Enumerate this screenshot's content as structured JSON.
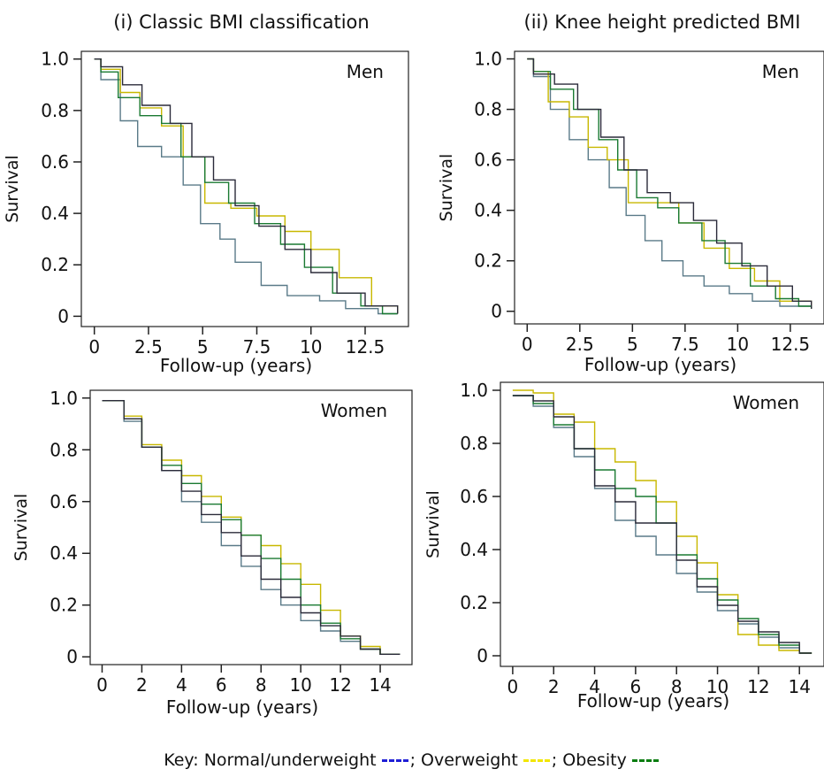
{
  "column_titles": [
    "(i) Classic BMI classification",
    "(ii) Knee height predicted BMI"
  ],
  "legend": {
    "prefix": "Key:",
    "items": [
      {
        "label": "Normal/underweight",
        "color": "#1f1fd6",
        "suffix": ";"
      },
      {
        "label": "Overweight",
        "color": "#f2e600",
        "suffix": ";"
      },
      {
        "label": "Obesity",
        "color": "#0a7d10",
        "suffix": ""
      }
    ]
  },
  "chart_data": [
    {
      "type": "line",
      "step": true,
      "column_title": "(i) Classic BMI classification",
      "panel_label": "Men",
      "xlabel": "Follow-up (years)",
      "ylabel": "Survival",
      "xlim": [
        -0.6,
        14.5
      ],
      "ylim": [
        -0.04,
        1.03
      ],
      "xticks": [
        0,
        2.5,
        5,
        7.5,
        10,
        12.5
      ],
      "xtick_labels": [
        "0",
        "2.5",
        "5",
        "7.5",
        "10",
        "12.5"
      ],
      "yticks": [
        0,
        0.2,
        0.4,
        0.6,
        0.8,
        1.0
      ],
      "ytick_labels": [
        "0",
        "0.2",
        "0.4",
        "0.6",
        "0.8",
        "1.0"
      ],
      "series": [
        {
          "color": "#5a7a88",
          "x": [
            0,
            0.3,
            1.2,
            2,
            3.1,
            4.1,
            4.9,
            5.8,
            6.5,
            7.7,
            8.9,
            10.4,
            11.6,
            13.1,
            14
          ],
          "y": [
            1.0,
            0.92,
            0.76,
            0.66,
            0.62,
            0.51,
            0.36,
            0.3,
            0.21,
            0.12,
            0.08,
            0.06,
            0.03,
            0.01,
            0.01
          ]
        },
        {
          "color": "#c8b800",
          "x": [
            0,
            0.3,
            1.2,
            2.1,
            3.1,
            4.1,
            5.1,
            6.3,
            7.5,
            8.8,
            10,
            11.3,
            12.8,
            14
          ],
          "y": [
            1.0,
            0.96,
            0.87,
            0.81,
            0.74,
            0.62,
            0.44,
            0.42,
            0.39,
            0.33,
            0.26,
            0.15,
            0.04,
            0.01
          ]
        },
        {
          "color": "#1a7a32",
          "x": [
            0,
            0.3,
            1.1,
            2.1,
            3.1,
            4,
            5.1,
            6.2,
            7.4,
            8.6,
            9.7,
            11,
            12.3,
            13.3,
            14
          ],
          "y": [
            1.0,
            0.95,
            0.85,
            0.78,
            0.75,
            0.62,
            0.52,
            0.44,
            0.36,
            0.28,
            0.19,
            0.09,
            0.04,
            0.01,
            0.01
          ]
        },
        {
          "color": "#2b2b3a",
          "x": [
            0,
            0.3,
            1.3,
            2.2,
            3.5,
            4.5,
            5.5,
            6.5,
            7.6,
            8.8,
            10,
            11.2,
            12.5,
            14
          ],
          "y": [
            1.0,
            0.97,
            0.9,
            0.82,
            0.75,
            0.62,
            0.53,
            0.43,
            0.35,
            0.26,
            0.17,
            0.09,
            0.04,
            0.01
          ]
        }
      ]
    },
    {
      "type": "line",
      "step": true,
      "column_title": "(ii) Knee height predicted BMI",
      "panel_label": "Men",
      "xlabel": "Follow-up (years)",
      "ylabel": "Survival",
      "xlim": [
        -0.6,
        14.1
      ],
      "ylim": [
        -0.05,
        1.03
      ],
      "xticks": [
        0,
        2.5,
        5,
        7.5,
        10,
        12.5
      ],
      "xtick_labels": [
        "0",
        "2.5",
        "5",
        "7.5",
        "10",
        "12.5"
      ],
      "yticks": [
        0,
        0.2,
        0.4,
        0.6,
        0.8,
        1.0
      ],
      "ytick_labels": [
        "0",
        "0.2",
        "0.4",
        "0.6",
        "0.8",
        "1.0"
      ],
      "series": [
        {
          "color": "#5a7a88",
          "x": [
            0,
            0.3,
            1.1,
            2,
            2.9,
            3.9,
            4.7,
            5.6,
            6.4,
            7.4,
            8.4,
            9.6,
            10.7,
            12,
            13.5
          ],
          "y": [
            1.0,
            0.93,
            0.8,
            0.68,
            0.6,
            0.49,
            0.38,
            0.28,
            0.2,
            0.14,
            0.1,
            0.07,
            0.04,
            0.02,
            0.01
          ]
        },
        {
          "color": "#c8b800",
          "x": [
            0,
            0.3,
            1,
            2,
            2.9,
            3.8,
            4.8,
            6,
            7.2,
            8.4,
            9.6,
            10.8,
            12,
            13.5
          ],
          "y": [
            1.0,
            0.95,
            0.83,
            0.77,
            0.65,
            0.6,
            0.43,
            0.43,
            0.35,
            0.25,
            0.17,
            0.12,
            0.04,
            0.01
          ]
        },
        {
          "color": "#1a7a32",
          "x": [
            0,
            0.3,
            1.1,
            2.2,
            3.4,
            4.3,
            5.2,
            6.2,
            7.2,
            8.3,
            9.4,
            10.6,
            11.8,
            12.9,
            13.5
          ],
          "y": [
            1.0,
            0.95,
            0.88,
            0.8,
            0.68,
            0.56,
            0.45,
            0.41,
            0.35,
            0.28,
            0.19,
            0.1,
            0.05,
            0.02,
            0.01
          ]
        },
        {
          "color": "#2b2b3a",
          "x": [
            0,
            0.3,
            1.3,
            2.4,
            3.5,
            4.6,
            5.7,
            6.8,
            7.9,
            9,
            10.2,
            11.4,
            12.6,
            13.5
          ],
          "y": [
            1.0,
            0.94,
            0.9,
            0.8,
            0.69,
            0.56,
            0.47,
            0.43,
            0.36,
            0.27,
            0.18,
            0.1,
            0.04,
            0.01
          ]
        }
      ]
    },
    {
      "type": "line",
      "step": true,
      "column_title": "(i) Classic BMI classification",
      "panel_label": "Women",
      "xlabel": "Follow-up (years)",
      "ylabel": "Survival",
      "xlim": [
        -0.6,
        15.6
      ],
      "ylim": [
        -0.03,
        1.03
      ],
      "xticks": [
        0,
        2,
        4,
        6,
        8,
        10,
        12,
        14
      ],
      "xtick_labels": [
        "0",
        "2",
        "4",
        "6",
        "8",
        "10",
        "12",
        "14"
      ],
      "yticks": [
        0,
        0.2,
        0.4,
        0.6,
        0.8,
        1.0
      ],
      "ytick_labels": [
        "0",
        "0.2",
        "0.4",
        "0.6",
        "0.8",
        "1.0"
      ],
      "series": [
        {
          "color": "#5a7a88",
          "x": [
            0,
            1.1,
            2,
            3,
            4,
            5,
            6,
            7,
            8,
            9,
            10,
            11,
            12,
            13,
            14,
            15
          ],
          "y": [
            0.99,
            0.91,
            0.81,
            0.72,
            0.6,
            0.52,
            0.43,
            0.35,
            0.26,
            0.2,
            0.14,
            0.1,
            0.06,
            0.03,
            0.01,
            0.01
          ]
        },
        {
          "color": "#c8b800",
          "x": [
            0,
            1.1,
            2,
            3,
            4,
            5,
            6,
            7,
            8,
            9,
            10,
            11,
            12,
            13,
            14,
            15
          ],
          "y": [
            0.99,
            0.93,
            0.82,
            0.76,
            0.7,
            0.62,
            0.54,
            0.47,
            0.43,
            0.36,
            0.28,
            0.18,
            0.08,
            0.04,
            0.01,
            0.01
          ]
        },
        {
          "color": "#1a7a32",
          "x": [
            0,
            1.1,
            2,
            3,
            4,
            5,
            6,
            7,
            8,
            9,
            10,
            11,
            12,
            13,
            14,
            15
          ],
          "y": [
            0.99,
            0.92,
            0.81,
            0.74,
            0.67,
            0.59,
            0.53,
            0.47,
            0.38,
            0.3,
            0.2,
            0.13,
            0.07,
            0.03,
            0.01,
            0.01
          ]
        },
        {
          "color": "#2b2b3a",
          "x": [
            0,
            1.1,
            2,
            3,
            4,
            5,
            6,
            7,
            8,
            9,
            10,
            11,
            12,
            13,
            14,
            15
          ],
          "y": [
            0.99,
            0.92,
            0.81,
            0.72,
            0.64,
            0.55,
            0.48,
            0.39,
            0.3,
            0.23,
            0.17,
            0.12,
            0.08,
            0.03,
            0.01,
            0.01
          ]
        }
      ]
    },
    {
      "type": "line",
      "step": true,
      "column_title": "(ii) Knee height predicted BMI",
      "panel_label": "Women",
      "xlabel": "Follow-up (years)",
      "ylabel": "Survival",
      "xlim": [
        -0.6,
        15.2
      ],
      "ylim": [
        -0.04,
        1.03
      ],
      "xticks": [
        0,
        2,
        4,
        6,
        8,
        10,
        12,
        14
      ],
      "xtick_labels": [
        "0",
        "2",
        "4",
        "6",
        "8",
        "10",
        "12",
        "14"
      ],
      "yticks": [
        0,
        0.2,
        0.4,
        0.6,
        0.8,
        1.0
      ],
      "ytick_labels": [
        "0",
        "0.2",
        "0.4",
        "0.6",
        "0.8",
        "1.0"
      ],
      "series": [
        {
          "color": "#5a7a88",
          "x": [
            0,
            1,
            2,
            3,
            4,
            5,
            6,
            7,
            8,
            9,
            10,
            11,
            12,
            13,
            14,
            14.6
          ],
          "y": [
            0.98,
            0.94,
            0.86,
            0.75,
            0.63,
            0.51,
            0.45,
            0.38,
            0.31,
            0.24,
            0.17,
            0.12,
            0.07,
            0.03,
            0.01,
            0.01
          ]
        },
        {
          "color": "#c8b800",
          "x": [
            0,
            1,
            2,
            3,
            4,
            5,
            6,
            7,
            8,
            9,
            10,
            11,
            12,
            13,
            14,
            14.6
          ],
          "y": [
            1.0,
            0.99,
            0.91,
            0.88,
            0.78,
            0.73,
            0.66,
            0.58,
            0.45,
            0.35,
            0.23,
            0.08,
            0.04,
            0.02,
            0.01,
            0.01
          ]
        },
        {
          "color": "#1a7a32",
          "x": [
            0,
            1,
            2,
            3,
            4,
            5,
            6,
            7,
            8,
            9,
            10,
            11,
            12,
            13,
            14,
            14.6
          ],
          "y": [
            0.98,
            0.95,
            0.87,
            0.78,
            0.7,
            0.63,
            0.6,
            0.5,
            0.38,
            0.29,
            0.21,
            0.14,
            0.08,
            0.04,
            0.01,
            0.01
          ]
        },
        {
          "color": "#2b2b3a",
          "x": [
            0,
            1,
            2,
            3,
            4,
            5,
            6,
            7,
            8,
            9,
            10,
            11,
            12,
            13,
            14,
            14.6
          ],
          "y": [
            0.98,
            0.96,
            0.9,
            0.78,
            0.64,
            0.58,
            0.5,
            0.5,
            0.36,
            0.26,
            0.19,
            0.13,
            0.09,
            0.05,
            0.01,
            0.01
          ]
        }
      ]
    }
  ]
}
